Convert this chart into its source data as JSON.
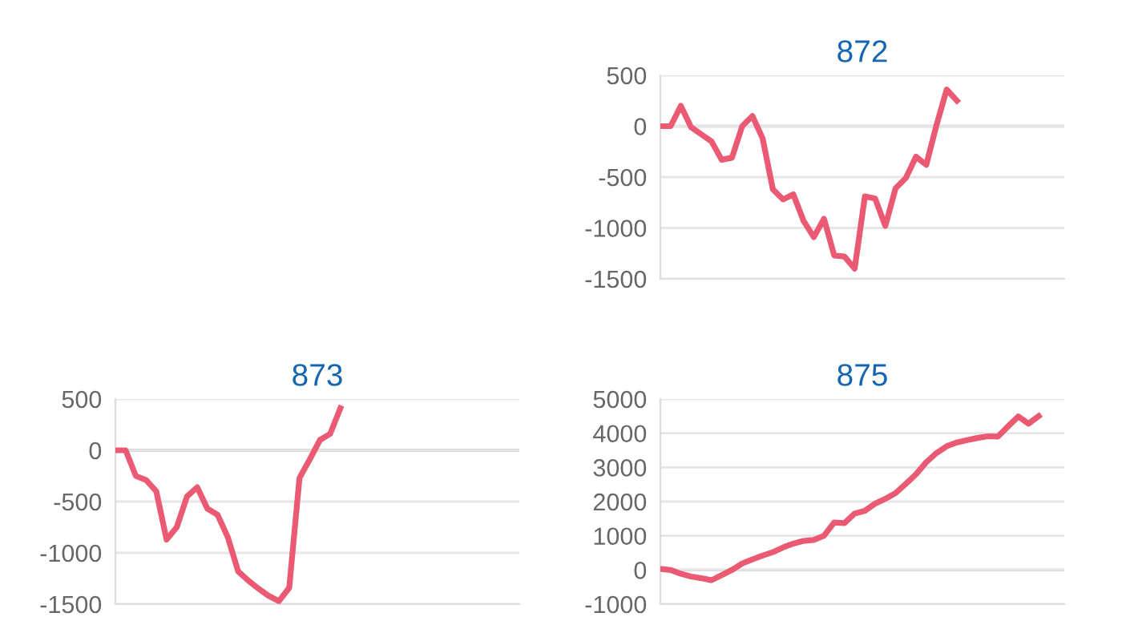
{
  "chart_data": [
    {
      "type": "line",
      "title": "872",
      "categories": [
        null,
        null,
        null,
        null,
        null,
        null,
        null,
        null,
        null,
        null,
        null,
        null,
        null,
        null,
        null,
        null,
        null,
        null,
        null,
        null,
        null,
        null,
        null,
        null,
        null,
        null,
        null,
        null,
        null,
        null,
        null,
        null,
        null,
        null,
        null,
        null,
        null,
        null,
        null,
        null
      ],
      "series": [
        {
          "color": "#eb5a73",
          "values": [
            0,
            0,
            200,
            -10,
            -80,
            -150,
            -330,
            -310,
            0,
            100,
            -120,
            -620,
            -720,
            -670,
            -930,
            -1090,
            -910,
            -1270,
            -1280,
            -1400,
            -690,
            -710,
            -980,
            -610,
            -510,
            -300,
            -380,
            10,
            360,
            250,
            null,
            null,
            null,
            null,
            null,
            null,
            null,
            null,
            null,
            null
          ]
        }
      ],
      "ylim": [
        -1500,
        500
      ],
      "yticks": [
        -1500,
        -1000,
        -500,
        0,
        500
      ],
      "grid": "y",
      "tick_labels": "y",
      "ref_lines": [
        {
          "axis": "y",
          "value": 0,
          "color": "#b0b0b0"
        }
      ]
    },
    {
      "type": "line",
      "title": "873",
      "categories": [
        null,
        null,
        null,
        null,
        null,
        null,
        null,
        null,
        null,
        null,
        null,
        null,
        null,
        null,
        null,
        null,
        null,
        null,
        null,
        null,
        null,
        null,
        null,
        null,
        null,
        null,
        null,
        null,
        null,
        null,
        null,
        null,
        null,
        null,
        null,
        null,
        null,
        null,
        null,
        null
      ],
      "series": [
        {
          "color": "#eb5a73",
          "values": [
            0,
            0,
            -250,
            -290,
            -400,
            -870,
            -750,
            -450,
            -360,
            -570,
            -630,
            -850,
            -1180,
            -1270,
            -1350,
            -1420,
            -1470,
            -1340,
            -270,
            -90,
            100,
            160,
            410,
            null,
            null,
            null,
            null,
            null,
            null,
            null,
            null,
            null,
            null,
            null,
            null,
            null,
            null,
            null,
            null,
            null
          ]
        }
      ],
      "ylim": [
        -1500,
        500
      ],
      "yticks": [
        -1500,
        -1000,
        -500,
        0,
        500
      ],
      "grid": "y",
      "tick_labels": "y",
      "ref_lines": [
        {
          "axis": "y",
          "value": 0,
          "color": "#b0b0b0"
        }
      ]
    },
    {
      "type": "line",
      "title": "875",
      "categories": [
        null,
        null,
        null,
        null,
        null,
        null,
        null,
        null,
        null,
        null,
        null,
        null,
        null,
        null,
        null,
        null,
        null,
        null,
        null,
        null,
        null,
        null,
        null,
        null,
        null,
        null,
        null,
        null,
        null,
        null,
        null,
        null,
        null,
        null,
        null,
        null,
        null,
        null,
        null,
        null
      ],
      "series": [
        {
          "color": "#eb5a73",
          "values": [
            30,
            0,
            -110,
            -190,
            -240,
            -300,
            -150,
            0,
            190,
            310,
            420,
            520,
            660,
            770,
            850,
            880,
            1000,
            1390,
            1370,
            1650,
            1730,
            1940,
            2080,
            2250,
            2520,
            2800,
            3150,
            3420,
            3620,
            3730,
            3800,
            3860,
            3910,
            3900,
            4200,
            4490,
            4280,
            4500,
            null,
            null
          ]
        }
      ],
      "ylim": [
        -1000,
        5000
      ],
      "yticks": [
        -1000,
        0,
        1000,
        2000,
        3000,
        4000,
        5000
      ],
      "grid": "y",
      "tick_labels": "y",
      "ref_lines": [
        {
          "axis": "y",
          "value": 0,
          "color": "#b0b0b0"
        }
      ]
    }
  ]
}
